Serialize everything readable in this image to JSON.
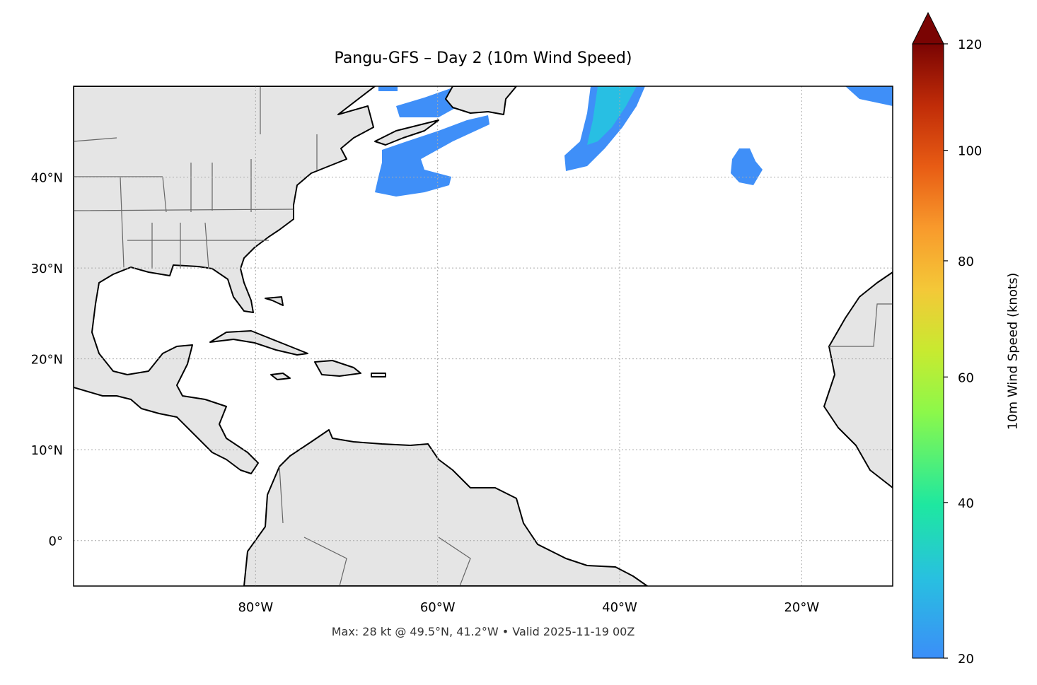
{
  "title": "Pangu-GFS – Day 2 (10m Wind Speed)",
  "footer": "Max: 28 kt @ 49.5°N, 41.2°W • Valid 2025-11-19 00Z",
  "map": {
    "extent": {
      "lon": [
        -100,
        -10
      ],
      "lat": [
        -5,
        50
      ]
    },
    "land_color": "#e5e5e5",
    "wind_color": "#3f8ff8",
    "wind_core_color": "#28bfe3",
    "gridlines": true,
    "lon_ticks": [
      {
        "value": -80,
        "label": "80°W"
      },
      {
        "value": -60,
        "label": "60°W"
      },
      {
        "value": -40,
        "label": "40°W"
      },
      {
        "value": -20,
        "label": "20°W"
      }
    ],
    "lat_ticks": [
      {
        "value": 0,
        "label": "0°"
      },
      {
        "value": 10,
        "label": "10°N"
      },
      {
        "value": 20,
        "label": "20°N"
      },
      {
        "value": 30,
        "label": "30°N"
      },
      {
        "value": 40,
        "label": "40°N"
      }
    ]
  },
  "colorbar": {
    "label": "10m Wind Speed (knots)",
    "range": [
      20,
      120
    ],
    "extend": "max",
    "colormap": "turbo",
    "ticks": [
      {
        "value": 20,
        "label": "20"
      },
      {
        "value": 40,
        "label": "40"
      },
      {
        "value": 60,
        "label": "60"
      },
      {
        "value": 80,
        "label": "80"
      },
      {
        "value": 100,
        "label": "100"
      },
      {
        "value": 120,
        "label": "120"
      }
    ]
  }
}
